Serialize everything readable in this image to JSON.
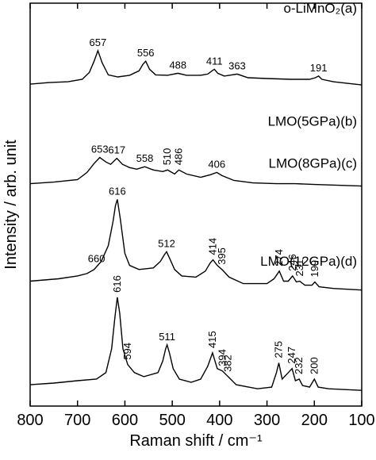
{
  "chart_data": {
    "type": "line",
    "xlabel": "Raman shift / cm⁻¹",
    "ylabel": "Intensity / arb. unit",
    "xlim": [
      800,
      100
    ],
    "xticks": [
      800,
      700,
      600,
      500,
      400,
      300,
      200,
      100
    ],
    "ylim": [
      0,
      100
    ],
    "series": [
      {
        "name": "o-LiMnO₂(a)",
        "color": "#000000",
        "x": [
          800,
          760,
          720,
          690,
          675,
          665,
          657,
          648,
          635,
          615,
          590,
          570,
          562,
          556,
          548,
          535,
          510,
          488,
          470,
          440,
          425,
          416,
          411,
          404,
          390,
          363,
          340,
          300,
          250,
          210,
          198,
          191,
          184,
          160,
          130,
          100
        ],
        "values": [
          79.9,
          80.3,
          80.5,
          81.1,
          82.8,
          85.6,
          88.2,
          85.2,
          82.2,
          81.7,
          82.1,
          83.2,
          84.8,
          85.6,
          83.6,
          82.2,
          82.1,
          82.6,
          82.1,
          82.1,
          82.4,
          83.2,
          83.6,
          82.6,
          81.9,
          82.4,
          81.5,
          81.3,
          81.1,
          81.1,
          81.5,
          81.9,
          81.1,
          80.5,
          80.1,
          79.7
        ],
        "peaks": [
          657,
          556,
          488,
          411,
          363,
          191
        ]
      },
      {
        "name": "LMO(5GPa)(b)",
        "color": "#000000",
        "x": [
          800,
          750,
          700,
          680,
          665,
          653,
          640,
          630,
          617,
          605,
          590,
          575,
          558,
          540,
          520,
          510,
          495,
          486,
          470,
          440,
          420,
          406,
          395,
          370,
          330,
          280,
          240,
          200,
          150,
          100
        ],
        "values": [
          55.2,
          55.6,
          56.2,
          58.0,
          60.2,
          61.7,
          60.6,
          60.0,
          61.5,
          60.0,
          59.2,
          58.8,
          59.4,
          58.6,
          58.2,
          58.6,
          57.6,
          58.6,
          57.6,
          56.8,
          57.4,
          58.0,
          57.2,
          56.0,
          55.4,
          55.2,
          55.2,
          55.0,
          54.8,
          54.6
        ],
        "peaks": [
          653,
          617,
          558,
          510,
          486,
          406
        ]
      },
      {
        "name": "LMO(8GPa)(c)",
        "color": "#000000",
        "x": [
          800,
          740,
          700,
          680,
          665,
          650,
          635,
          625,
          620,
          616,
          610,
          600,
          590,
          570,
          540,
          525,
          517,
          512,
          505,
          495,
          480,
          450,
          430,
          420,
          414,
          405,
          395,
          380,
          350,
          300,
          285,
          274,
          265,
          255,
          246,
          238,
          231,
          220,
          205,
          199,
          190,
          160,
          100
        ],
        "values": [
          31.0,
          31.6,
          32.3,
          32.9,
          33.9,
          35.9,
          39.8,
          45.8,
          49.7,
          51.3,
          46.7,
          37.9,
          34.9,
          33.9,
          34.3,
          35.9,
          37.5,
          38.3,
          36.5,
          33.9,
          32.3,
          32.0,
          33.5,
          35.5,
          36.3,
          34.9,
          33.9,
          32.0,
          30.4,
          30.4,
          31.6,
          33.5,
          31.0,
          31.0,
          32.3,
          30.8,
          31.0,
          30.0,
          30.0,
          30.8,
          29.6,
          29.2,
          28.8
        ],
        "peaks": [
          660,
          616,
          512,
          414,
          395,
          274,
          246,
          231,
          199
        ]
      },
      {
        "name": "LMO(12GPa)(d)",
        "color": "#000000",
        "x": [
          800,
          750,
          700,
          660,
          640,
          628,
          621,
          616,
          611,
          604,
          594,
          580,
          560,
          530,
          520,
          514,
          511,
          506,
          498,
          485,
          460,
          440,
          425,
          415,
          405,
          394,
          382,
          365,
          320,
          290,
          280,
          275,
          268,
          255,
          247,
          240,
          232,
          225,
          210,
          200,
          192,
          170,
          100
        ],
        "values": [
          5.3,
          5.7,
          6.3,
          6.7,
          8.3,
          14.2,
          22.1,
          27.0,
          23.1,
          14.2,
          10.3,
          8.3,
          7.3,
          8.3,
          11.2,
          14.2,
          15.2,
          13.2,
          9.3,
          6.7,
          5.9,
          6.7,
          9.9,
          13.2,
          9.3,
          8.7,
          7.3,
          5.3,
          4.3,
          4.7,
          8.3,
          10.7,
          6.7,
          8.3,
          9.3,
          6.3,
          6.7,
          5.1,
          4.7,
          6.7,
          4.7,
          4.3,
          3.9
        ],
        "peaks": [
          616,
          594,
          511,
          415,
          394,
          382,
          275,
          247,
          232,
          200
        ]
      }
    ]
  }
}
